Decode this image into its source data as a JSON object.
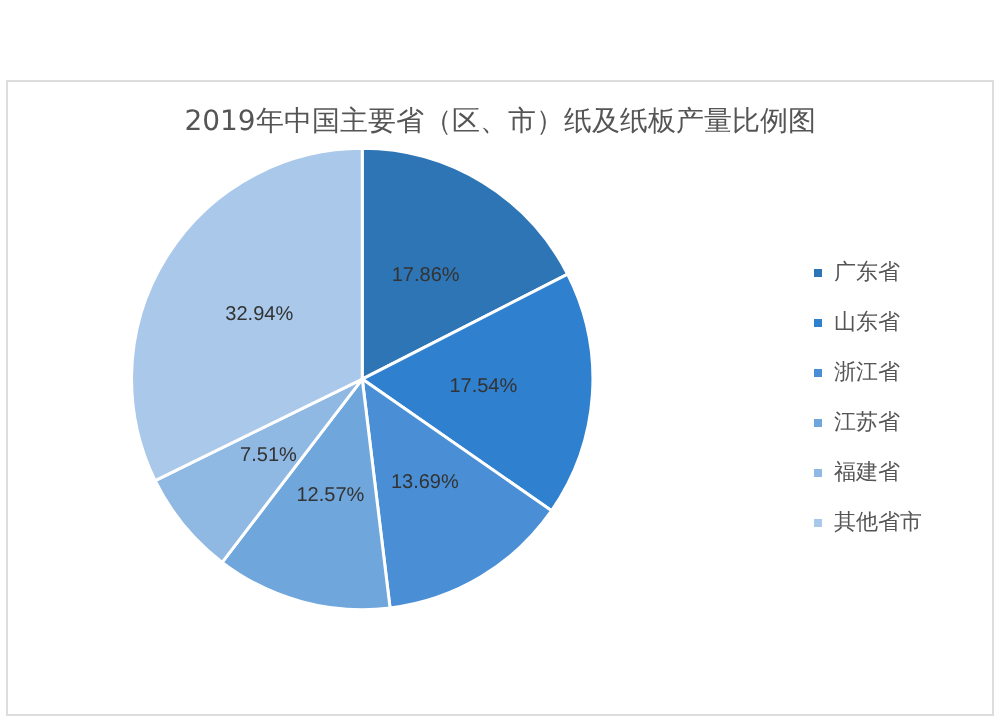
{
  "chart_data": {
    "type": "pie",
    "title": "2019年中国主要省（区、市）纸及纸板产量比例图",
    "categories": [
      "广东省",
      "山东省",
      "浙江省",
      "江苏省",
      "福建省",
      "其他省市"
    ],
    "values": [
      17.86,
      17.54,
      13.69,
      12.57,
      7.51,
      32.94
    ],
    "colors": [
      "#2e75b6",
      "#2f80cf",
      "#4a8fd6",
      "#6fa6dc",
      "#8fb8e3",
      "#a9c8ea"
    ],
    "value_labels": [
      "17.86%",
      "17.54%",
      "13.69%",
      "12.57%",
      "7.51%",
      "32.94%"
    ],
    "legend": "right"
  }
}
